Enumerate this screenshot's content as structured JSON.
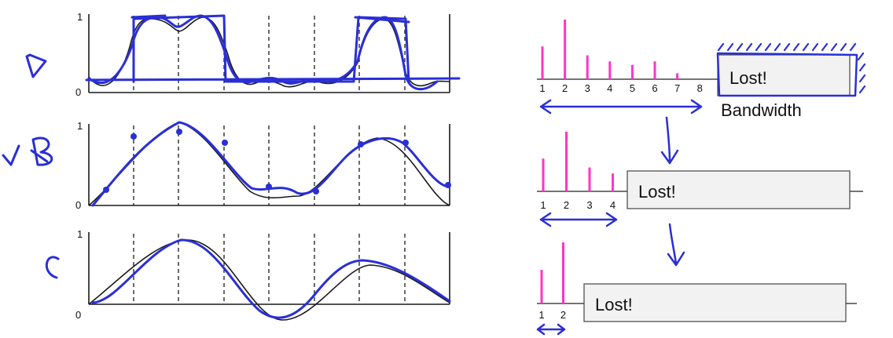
{
  "panel_labels": [
    "A",
    "B",
    "C"
  ],
  "left_plots": [
    {
      "y_top_label": "1",
      "y_bottom_label": "0"
    },
    {
      "y_top_label": "1",
      "y_bottom_label": "0"
    },
    {
      "y_top_label": "1",
      "y_bottom_label": "0"
    }
  ],
  "spectra": [
    {
      "harmonics": [
        {
          "n": 1,
          "value": 0.55
        },
        {
          "n": 2,
          "value": 1.0
        },
        {
          "n": 3,
          "value": 0.4
        },
        {
          "n": 4,
          "value": 0.3
        },
        {
          "n": 5,
          "value": 0.24
        },
        {
          "n": 6,
          "value": 0.3
        },
        {
          "n": 7,
          "value": 0.1
        }
      ],
      "tick_labels": [
        "1",
        "2",
        "3",
        "4",
        "5",
        "6",
        "7",
        "8"
      ],
      "lost_label": "Lost!",
      "bandwidth_label": "Bandwidth"
    },
    {
      "harmonics": [
        {
          "n": 1,
          "value": 0.55
        },
        {
          "n": 2,
          "value": 1.0
        },
        {
          "n": 3,
          "value": 0.4
        },
        {
          "n": 4,
          "value": 0.3
        }
      ],
      "tick_labels": [
        "1",
        "2",
        "3",
        "4"
      ],
      "lost_label": "Lost!"
    },
    {
      "harmonics": [
        {
          "n": 1,
          "value": 0.55
        },
        {
          "n": 2,
          "value": 1.0
        }
      ],
      "tick_labels": [
        "1",
        "2"
      ],
      "lost_label": "Lost!"
    }
  ],
  "colors": {
    "harmonic_bar": "#ff33cc",
    "annotation_ink": "#2a2fd6",
    "signal_curve": "#1a1a1a"
  },
  "icons": [
    "checkmark-icon",
    "down-arrow-icon",
    "double-arrow-icon"
  ]
}
